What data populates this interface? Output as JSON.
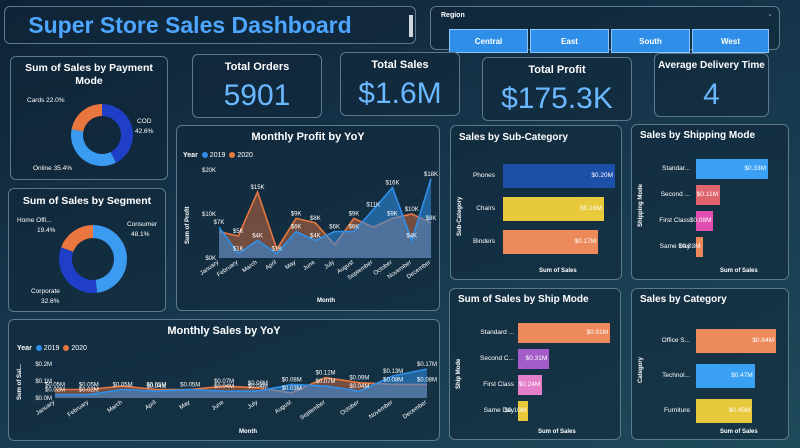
{
  "header": {
    "title": "Super Store Sales Dashboard"
  },
  "region": {
    "label": "Region",
    "options": [
      "Central",
      "East",
      "South",
      "West"
    ]
  },
  "kpis": [
    {
      "label": "Total Orders",
      "value": "5901"
    },
    {
      "label": "Total Sales",
      "value": "$1.6M"
    },
    {
      "label": "Total Profit",
      "value": "$175.3K"
    },
    {
      "label": "Average Delivery Time",
      "value": "4"
    }
  ],
  "payment": {
    "title": "Sum of Sales by Payment Mode",
    "slices": [
      {
        "label": "COD",
        "pct_text": "42.6%",
        "value": 42.6,
        "color": "#1f3fc8"
      },
      {
        "label": "Online",
        "pct_text": "35.4%",
        "value": 35.4,
        "color": "#3a9bf0"
      },
      {
        "label": "Cards",
        "pct_text": "22.0%",
        "value": 22.0,
        "color": "#e8763e"
      }
    ],
    "labels": {
      "cod": "COD",
      "cod_pct": "42.6%",
      "online": "Online 35.4%",
      "cards": "Cards 22.0%"
    }
  },
  "segment": {
    "title": "Sum of Sales by Segment",
    "slices": [
      {
        "label": "Consumer",
        "value": 48.1,
        "color": "#3a9bf0"
      },
      {
        "label": "Corporate",
        "value": 32.6,
        "color": "#1f3fc8"
      },
      {
        "label": "Home Office",
        "value": 19.4,
        "color": "#e8763e"
      }
    ],
    "labels": {
      "consumer": "Consumer",
      "consumer_pct": "48.1%",
      "corporate": "Corporate",
      "corporate_pct": "32.6%",
      "home": "Home Offi...",
      "home_pct": "19.4%"
    }
  },
  "monthly_profit": {
    "title": "Monthly Profit by YoY",
    "legend_year": "Year",
    "y_label": "Sum of Profit",
    "x_label": "Month",
    "y_ticks": [
      "$20K",
      "$10K",
      "$0K"
    ]
  },
  "monthly_sales": {
    "title": "Monthly Sales by YoY",
    "legend_year": "Year",
    "y_label": "Sum of Sal...",
    "x_label": "Month",
    "y_ticks": [
      "$0.2M",
      "$0.1M",
      "$0.0M"
    ]
  },
  "subcat": {
    "title": "Sales by Sub-Category",
    "axis_y": "Sub-Category",
    "axis_x": "Sum of Sales",
    "bars": [
      {
        "label": "Phones",
        "value": 0.2,
        "text": "$0.20M",
        "color": "#1b4fa8"
      },
      {
        "label": "Chairs",
        "value": 0.18,
        "text": "$0.18M",
        "color": "#e8c93c"
      },
      {
        "label": "Binders",
        "value": 0.17,
        "text": "$0.17M",
        "color": "#ec8a5c"
      }
    ]
  },
  "shipping_mode": {
    "title": "Sales by Shipping Mode",
    "axis_y": "Shipping Mode",
    "axis_x": "Sum of Sales",
    "bars": [
      {
        "label": "Standar...",
        "value": 0.33,
        "text": "$0.33M",
        "color": "#3aa0f4"
      },
      {
        "label": "Second ...",
        "value": 0.11,
        "text": "$0.11M",
        "color": "#e0646e"
      },
      {
        "label": "First Class",
        "value": 0.08,
        "text": "$0.08M",
        "color": "#e04fb0"
      },
      {
        "label": "Same Day",
        "value": 0.03,
        "text": "$0.03M",
        "color": "#ec8a5c"
      }
    ]
  },
  "ship_mode": {
    "title": "Sum of Sales by Ship Mode",
    "axis_y": "Ship Mode",
    "axis_x": "Sum of Sales",
    "bars": [
      {
        "label": "Standard ...",
        "value": 0.91,
        "text": "$0.91M",
        "color": "#ec8a5c"
      },
      {
        "label": "Second C...",
        "value": 0.31,
        "text": "$0.31M",
        "color": "#a45cc8"
      },
      {
        "label": "First Class",
        "value": 0.24,
        "text": "$0.24M",
        "color": "#e47ec8"
      },
      {
        "label": "Same Day",
        "value": 0.1,
        "text": "$0.10M",
        "color": "#e8c93c"
      }
    ]
  },
  "category": {
    "title": "Sales by Category",
    "axis_y": "Category",
    "axis_x": "Sum of Sales",
    "bars": [
      {
        "label": "Office S...",
        "value": 0.64,
        "text": "$0.64M",
        "color": "#ec8a5c"
      },
      {
        "label": "Technol...",
        "value": 0.47,
        "text": "$0.47M",
        "color": "#3aa0f4"
      },
      {
        "label": "Furniture",
        "value": 0.45,
        "text": "$0.45M",
        "color": "#e8c93c"
      }
    ]
  },
  "chart_data": [
    {
      "type": "area",
      "title": "Monthly Profit by YoY",
      "xlabel": "Month",
      "ylabel": "Sum of Profit",
      "ylim": [
        0,
        20
      ],
      "categories": [
        "January",
        "February",
        "March",
        "April",
        "May",
        "June",
        "July",
        "August",
        "September",
        "October",
        "November",
        "December"
      ],
      "series": [
        {
          "name": "2019",
          "color": "#2f8fe8",
          "values": [
            7,
            1,
            4,
            1,
            6,
            4,
            6,
            6,
            11,
            16,
            4,
            18
          ],
          "labels": [
            "$7K",
            "$1K",
            "$4K",
            "$1K",
            "$6K",
            "$4K",
            "$6K",
            "$6K",
            "$11K",
            "$16K",
            "$4K",
            "$18K"
          ]
        },
        {
          "name": "2020",
          "color": "#e8763e",
          "values": [
            6,
            5,
            15,
            2,
            9,
            8,
            3,
            9,
            7,
            9,
            10,
            8
          ],
          "labels": [
            "",
            "$5K",
            "$15K",
            "",
            "$9K",
            "$8K",
            "",
            "$9K",
            "",
            "$9K",
            "$10K",
            "$8K"
          ]
        }
      ]
    },
    {
      "type": "area",
      "title": "Monthly Sales by YoY",
      "xlabel": "Month",
      "ylabel": "Sum of Sales",
      "ylim": [
        0,
        0.2
      ],
      "categories": [
        "January",
        "February",
        "March",
        "April",
        "May",
        "June",
        "July",
        "August",
        "September",
        "October",
        "November",
        "December"
      ],
      "series": [
        {
          "name": "2019",
          "color": "#2f8fe8",
          "values": [
            0.02,
            0.02,
            0.05,
            0.04,
            0.05,
            0.04,
            0.04,
            0.08,
            0.07,
            0.04,
            0.13,
            0.17
          ],
          "labels": [
            "$0.02M",
            "$0.02M",
            "$0.05M",
            "$0.04M",
            "$0.05M",
            "$0.04M",
            "$0.04M",
            "$0.08M",
            "$0.07M",
            "$0.04M",
            "$0.13M",
            "$0.17M"
          ]
        },
        {
          "name": "2020",
          "color": "#e8763e",
          "values": [
            0.05,
            0.05,
            0.07,
            0.05,
            0.05,
            0.07,
            0.06,
            0.03,
            0.12,
            0.09,
            0.08,
            0.08
          ],
          "labels": [
            "$0.05M",
            "$0.05M",
            "",
            "$0.05M",
            "",
            "$0.07M",
            "$0.06M",
            "$0.03M",
            "$0.12M",
            "$0.09M",
            "$0.08M",
            "$0.08M"
          ]
        }
      ]
    }
  ]
}
